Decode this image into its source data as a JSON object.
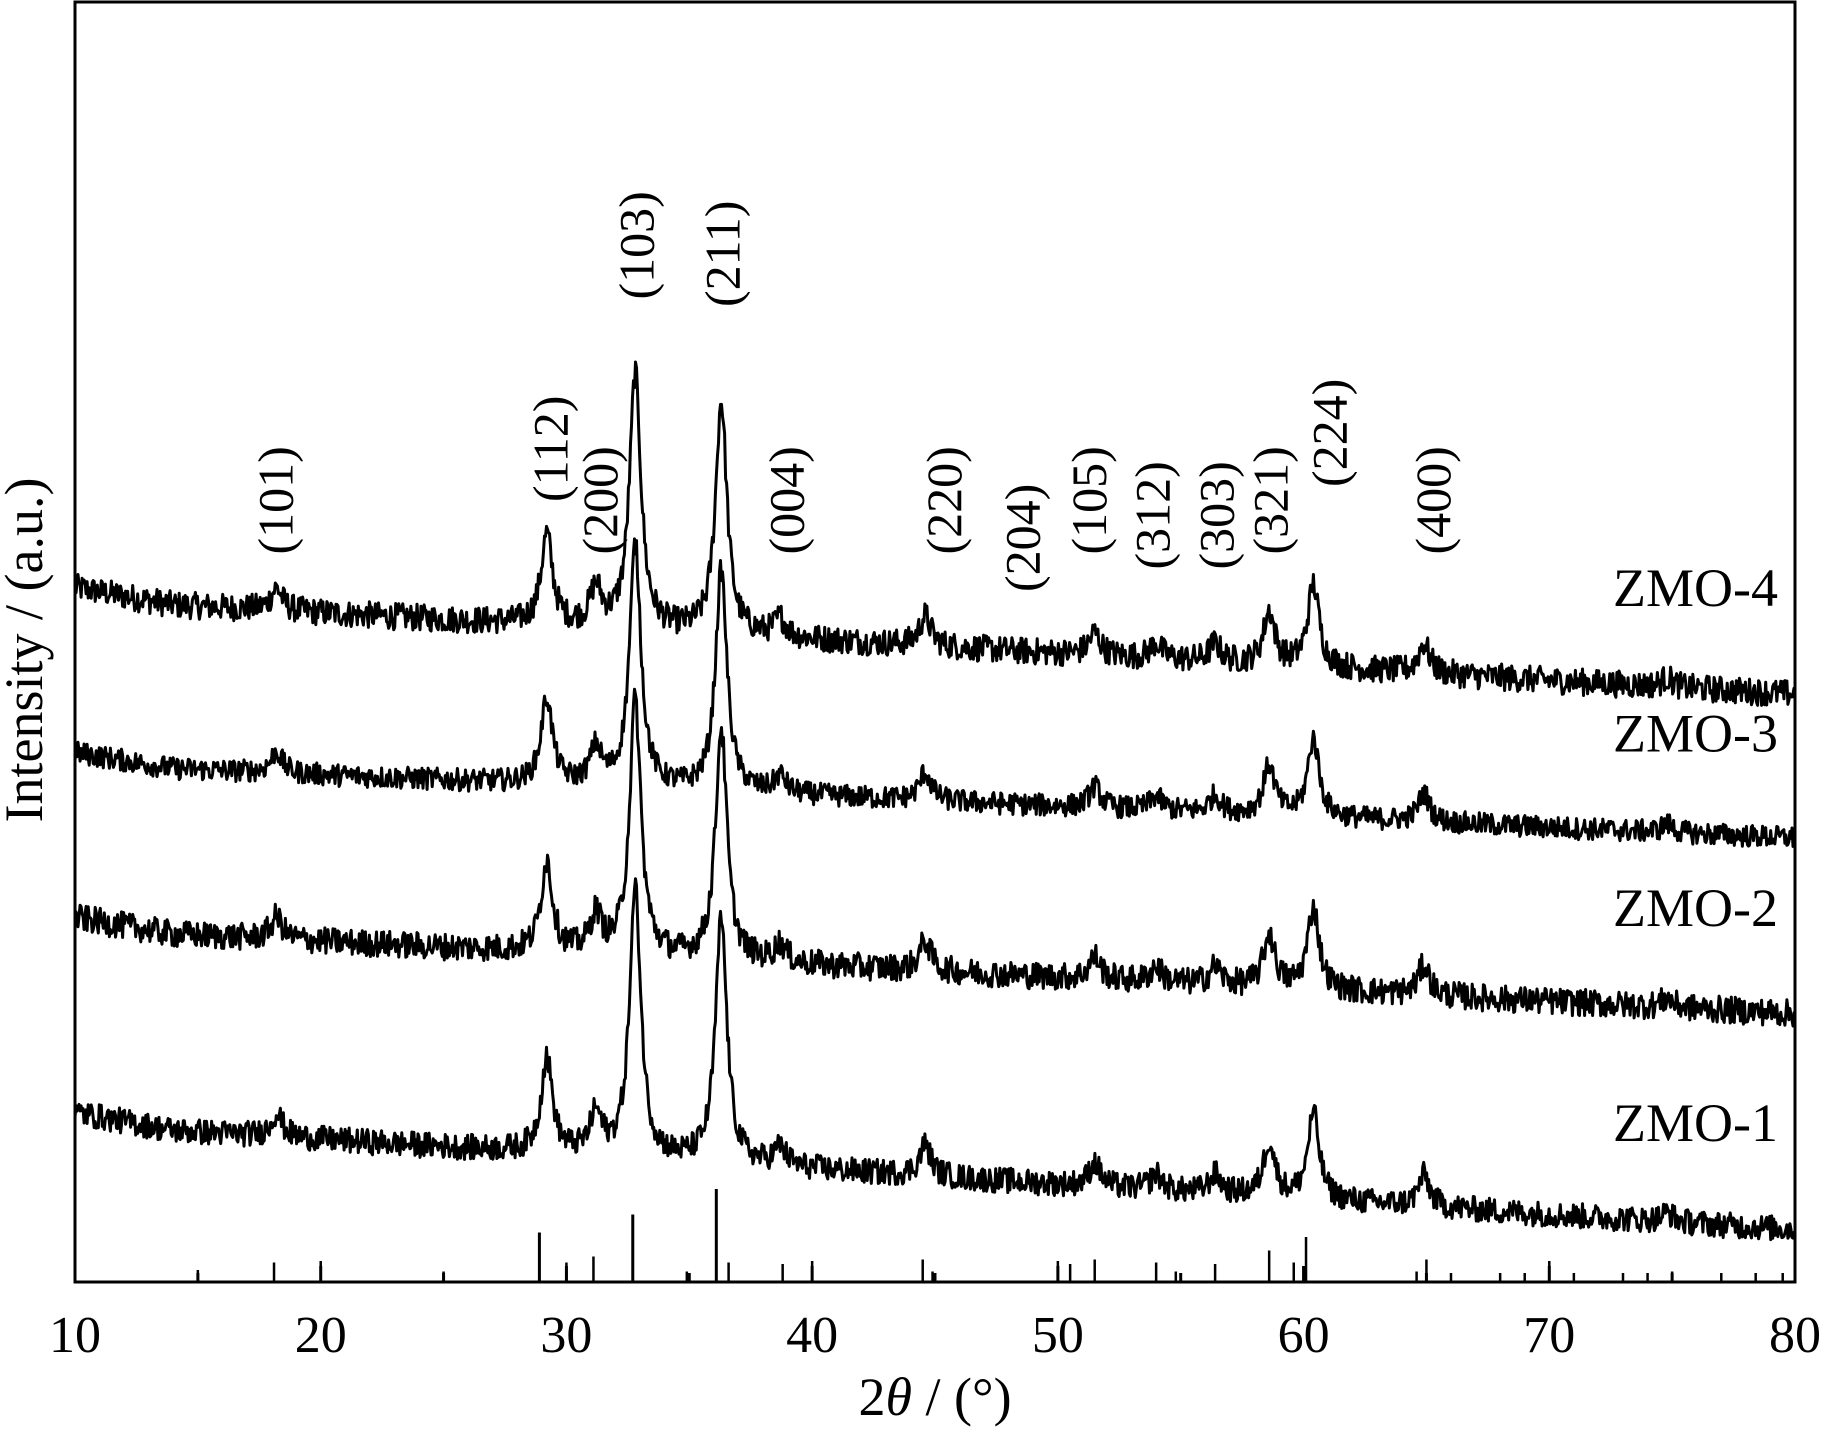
{
  "chart_data": {
    "type": "line",
    "xlabel_prefix": "2",
    "xlabel_symbol": "θ",
    "xlabel_suffix": " / (°)",
    "ylabel": "Intensity / (a.u.)",
    "xlim": [
      10,
      80
    ],
    "xticks": [
      10,
      20,
      30,
      40,
      50,
      60,
      70,
      80
    ],
    "yticks_shown": false,
    "grid": false,
    "legend": "none",
    "line_color": "#000000",
    "series": [
      {
        "name": "ZMO-4",
        "baseline": 4.55,
        "slope": 0.009,
        "noise": 0.09,
        "peak_scale": 1.0
      },
      {
        "name": "ZMO-3",
        "baseline": 3.45,
        "slope": 0.007,
        "noise": 0.075,
        "peak_scale": 0.95
      },
      {
        "name": "ZMO-2",
        "baseline": 2.35,
        "slope": 0.008,
        "noise": 0.09,
        "peak_scale": 1.0
      },
      {
        "name": "ZMO-1",
        "baseline": 1.05,
        "slope": 0.01,
        "noise": 0.085,
        "peak_scale": 1.05
      }
    ],
    "peaks": [
      {
        "pos": 18.2,
        "height": 0.15
      },
      {
        "pos": 29.2,
        "height": 0.6
      },
      {
        "pos": 31.2,
        "height": 0.25
      },
      {
        "pos": 32.8,
        "height": 1.7
      },
      {
        "pos": 36.3,
        "height": 1.55
      },
      {
        "pos": 38.7,
        "height": 0.12
      },
      {
        "pos": 44.6,
        "height": 0.2
      },
      {
        "pos": 51.5,
        "height": 0.15
      },
      {
        "pos": 54.0,
        "height": 0.1
      },
      {
        "pos": 56.4,
        "height": 0.12
      },
      {
        "pos": 58.6,
        "height": 0.35
      },
      {
        "pos": 60.4,
        "height": 0.55
      },
      {
        "pos": 64.9,
        "height": 0.2
      },
      {
        "pos": 74.8,
        "height": 0.06
      }
    ],
    "reference_sticks": [
      {
        "x": 15.0,
        "h": 0.08
      },
      {
        "x": 18.1,
        "h": 0.13
      },
      {
        "x": 20.0,
        "h": 0.14
      },
      {
        "x": 25.0,
        "h": 0.07
      },
      {
        "x": 28.9,
        "h": 0.33
      },
      {
        "x": 30.0,
        "h": 0.13
      },
      {
        "x": 31.1,
        "h": 0.17
      },
      {
        "x": 32.7,
        "h": 0.45
      },
      {
        "x": 34.9,
        "h": 0.07
      },
      {
        "x": 36.1,
        "h": 0.62
      },
      {
        "x": 36.6,
        "h": 0.13
      },
      {
        "x": 38.8,
        "h": 0.12
      },
      {
        "x": 40.0,
        "h": 0.14
      },
      {
        "x": 44.5,
        "h": 0.15
      },
      {
        "x": 44.9,
        "h": 0.07
      },
      {
        "x": 50.0,
        "h": 0.14
      },
      {
        "x": 50.5,
        "h": 0.12
      },
      {
        "x": 51.5,
        "h": 0.15
      },
      {
        "x": 54.0,
        "h": 0.13
      },
      {
        "x": 54.8,
        "h": 0.07
      },
      {
        "x": 56.4,
        "h": 0.12
      },
      {
        "x": 58.6,
        "h": 0.21
      },
      {
        "x": 59.6,
        "h": 0.13
      },
      {
        "x": 60.1,
        "h": 0.3
      },
      {
        "x": 64.6,
        "h": 0.07
      },
      {
        "x": 65.0,
        "h": 0.15
      },
      {
        "x": 66.0,
        "h": 0.06
      },
      {
        "x": 68.0,
        "h": 0.06
      },
      {
        "x": 69.0,
        "h": 0.06
      },
      {
        "x": 70.0,
        "h": 0.14
      },
      {
        "x": 71.0,
        "h": 0.06
      },
      {
        "x": 73.0,
        "h": 0.06
      },
      {
        "x": 74.0,
        "h": 0.06
      },
      {
        "x": 75.0,
        "h": 0.07
      },
      {
        "x": 77.0,
        "h": 0.06
      },
      {
        "x": 78.4,
        "h": 0.06
      },
      {
        "x": 79.5,
        "h": 0.06
      }
    ],
    "hkl_labels": [
      {
        "text": "(101)",
        "x": 18.2,
        "y": 4.85
      },
      {
        "text": "(112)",
        "x": 29.4,
        "y": 5.2
      },
      {
        "text": "(200)",
        "x": 31.4,
        "y": 4.85
      },
      {
        "text": "(103)",
        "x": 32.9,
        "y": 6.55
      },
      {
        "text": "(211)",
        "x": 36.4,
        "y": 6.5
      },
      {
        "text": "(004)",
        "x": 39.0,
        "y": 4.85
      },
      {
        "text": "(220)",
        "x": 45.4,
        "y": 4.85
      },
      {
        "text": "(204)",
        "x": 48.6,
        "y": 4.6
      },
      {
        "text": "(105)",
        "x": 51.3,
        "y": 4.85
      },
      {
        "text": "(312)",
        "x": 53.9,
        "y": 4.75
      },
      {
        "text": "(303)",
        "x": 56.5,
        "y": 4.75
      },
      {
        "text": "(321)",
        "x": 58.7,
        "y": 4.85
      },
      {
        "text": "(224)",
        "x": 61.1,
        "y": 5.3
      },
      {
        "text": "(400)",
        "x": 65.3,
        "y": 4.85
      }
    ]
  }
}
